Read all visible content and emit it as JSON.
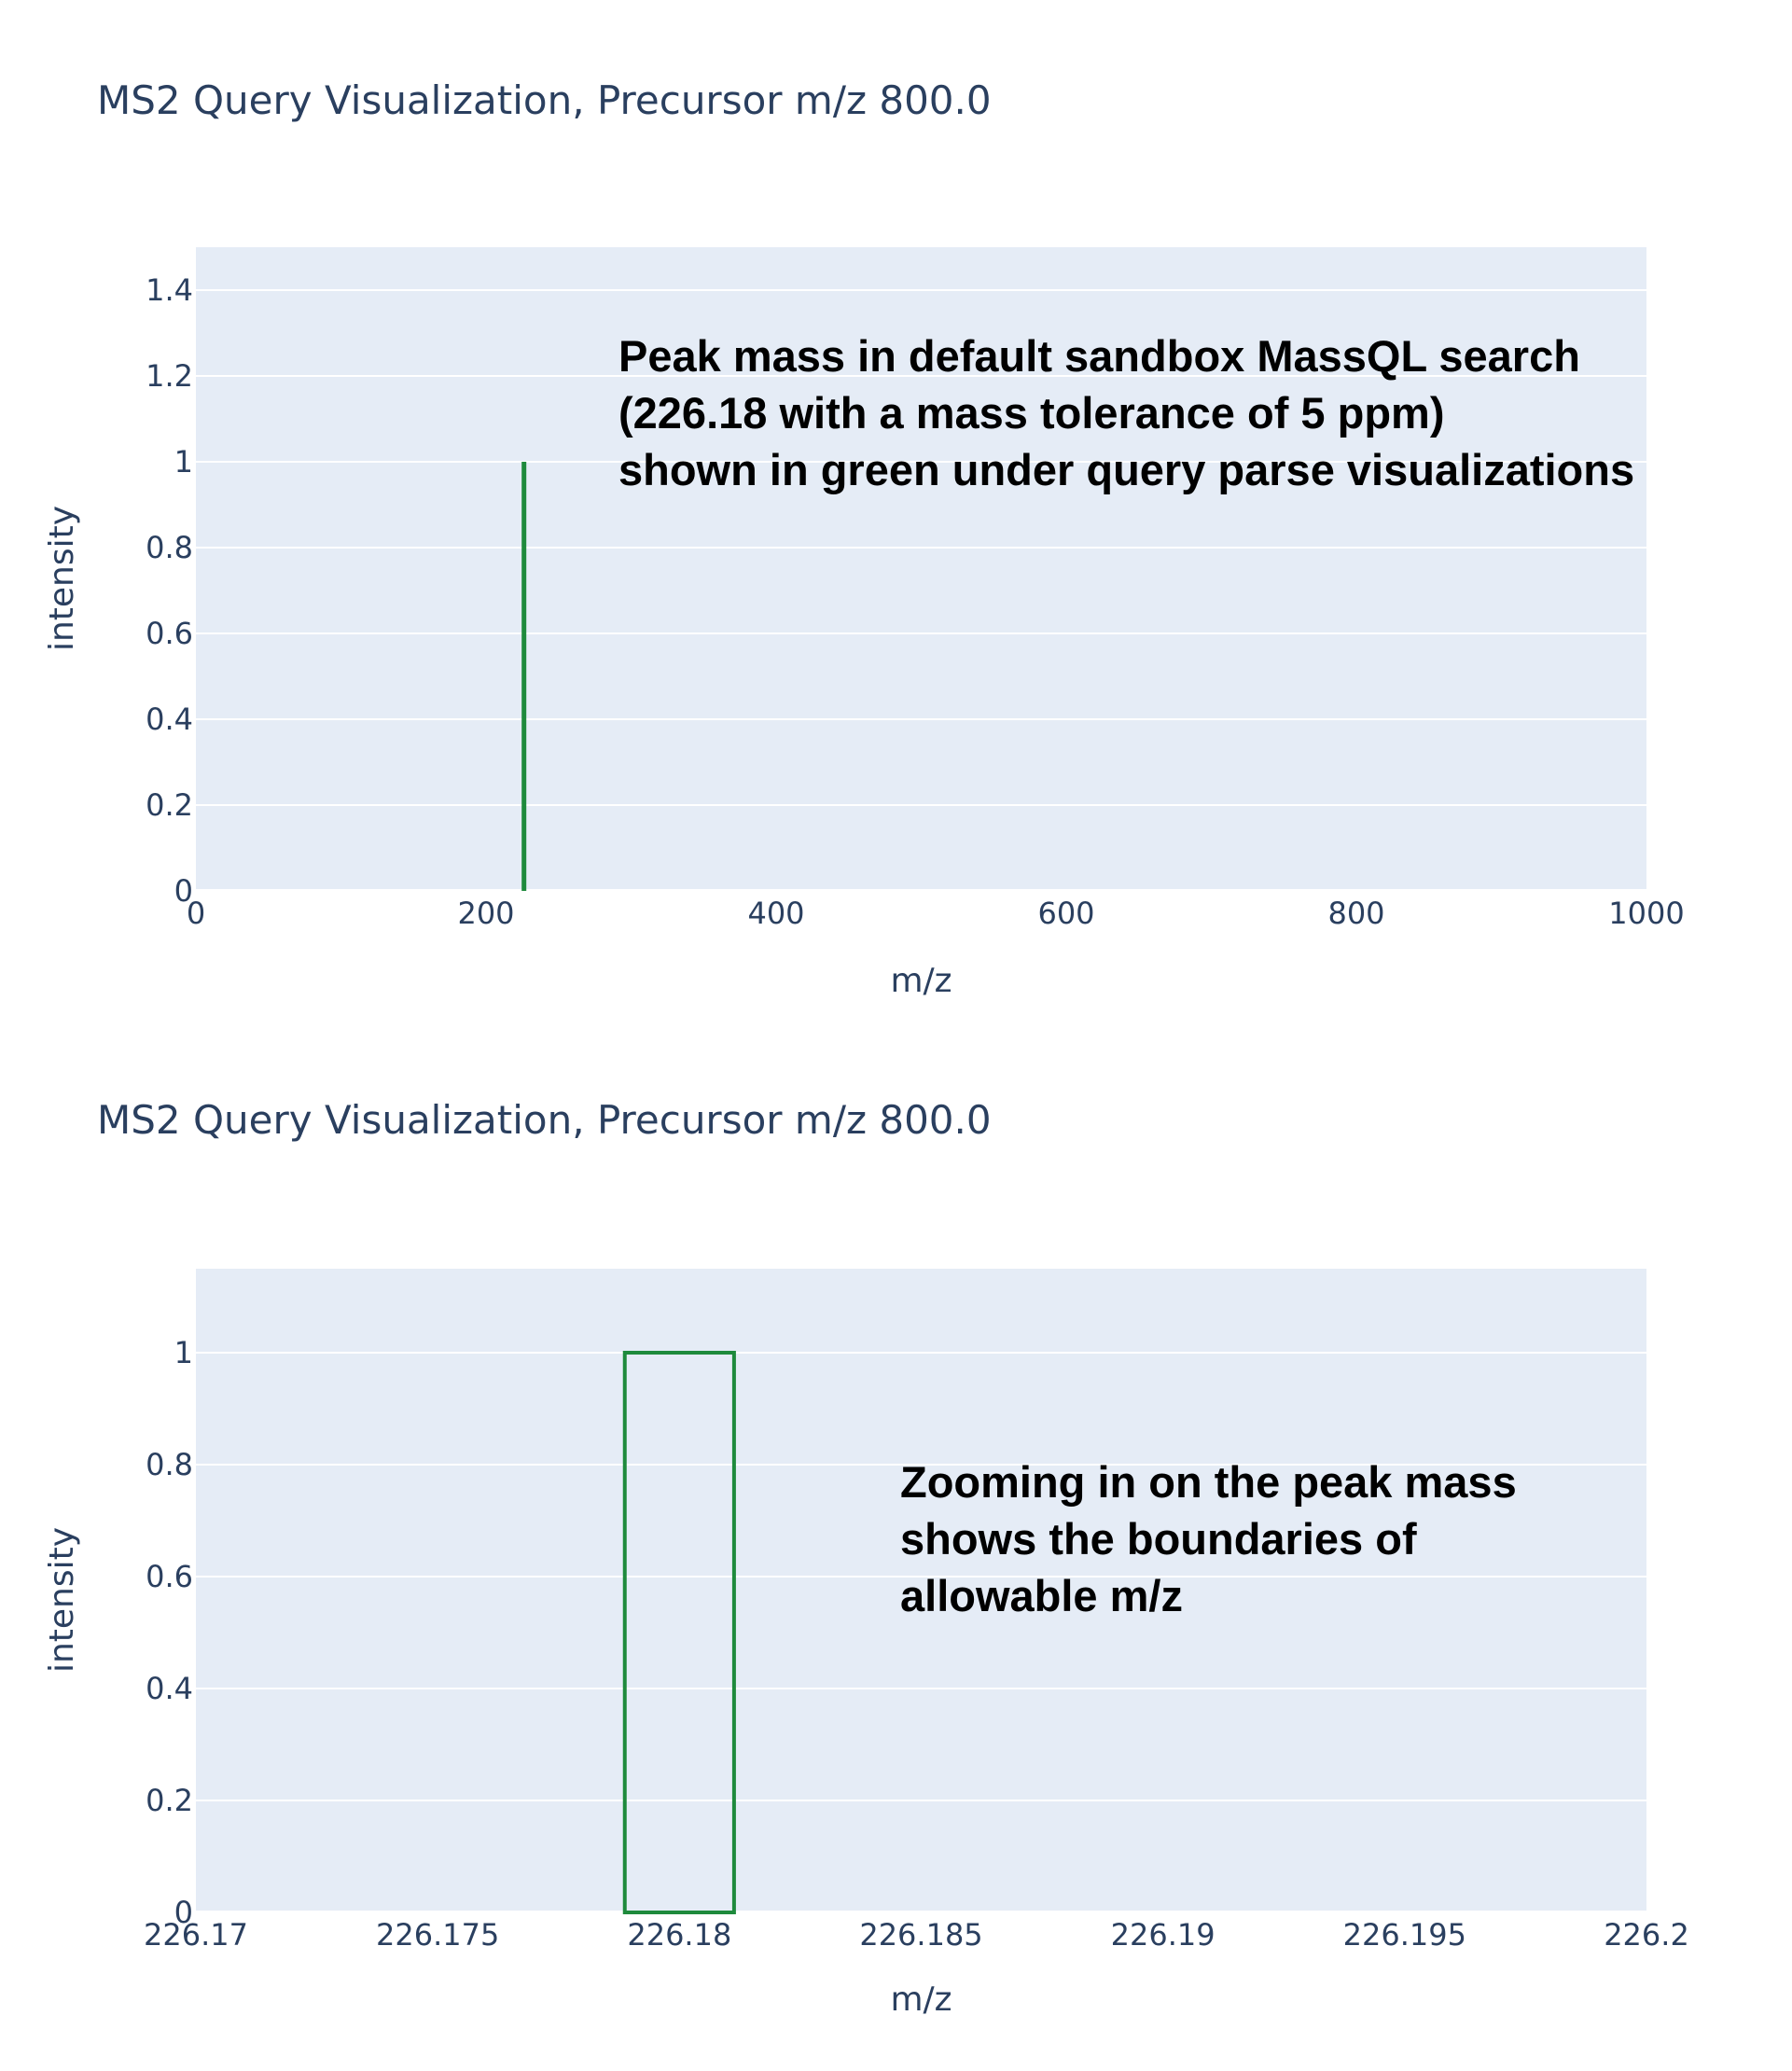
{
  "colors": {
    "plot_background": "#e5ecf6",
    "gridline": "#ffffff",
    "text": "#2a3f5f",
    "peak": "#1e8a3c",
    "annotation": "#000000"
  },
  "chart_data": [
    {
      "type": "bar",
      "title": "MS2 Query Visualization, Precursor m/z 800.0",
      "xlabel": "m/z",
      "ylabel": "intensity",
      "xlim": [
        0,
        1000
      ],
      "ylim": [
        0,
        1.5
      ],
      "xticks": [
        0,
        200,
        400,
        600,
        800,
        1000
      ],
      "xtick_labels": [
        "0",
        "200",
        "400",
        "600",
        "800",
        "1000"
      ],
      "yticks": [
        0,
        0.2,
        0.4,
        0.6,
        0.8,
        1,
        1.2,
        1.4
      ],
      "ytick_labels": [
        "0",
        "0.2",
        "0.4",
        "0.6",
        "0.8",
        "1",
        "1.2",
        "1.4"
      ],
      "grid": true,
      "series": [
        {
          "peaks": [
            {
              "x_min": 226.17887,
              "x_max": 226.18113,
              "intensity": 1
            }
          ]
        }
      ],
      "annotation": [
        "Peak mass in default sandbox MassQL search",
        "(226.18 with a mass tolerance of 5 ppm)",
        "shown in green under query parse visualizations"
      ]
    },
    {
      "type": "bar",
      "title": "MS2 Query Visualization, Precursor m/z 800.0",
      "xlabel": "m/z",
      "ylabel": "intensity",
      "xlim": [
        226.17,
        226.2
      ],
      "ylim": [
        0,
        1.15
      ],
      "xticks": [
        226.17,
        226.175,
        226.18,
        226.185,
        226.19,
        226.195,
        226.2
      ],
      "xtick_labels": [
        "226.17",
        "226.175",
        "226.18",
        "226.185",
        "226.19",
        "226.195",
        "226.2"
      ],
      "yticks": [
        0,
        0.2,
        0.4,
        0.6,
        0.8,
        1
      ],
      "ytick_labels": [
        "0",
        "0.2",
        "0.4",
        "0.6",
        "0.8",
        "1"
      ],
      "grid": true,
      "series": [
        {
          "peaks": [
            {
              "x_min": 226.17887,
              "x_max": 226.18113,
              "intensity": 1
            }
          ]
        }
      ],
      "annotation": [
        "Zooming in on the peak mass",
        "shows the boundaries of",
        "allowable m/z"
      ]
    }
  ]
}
